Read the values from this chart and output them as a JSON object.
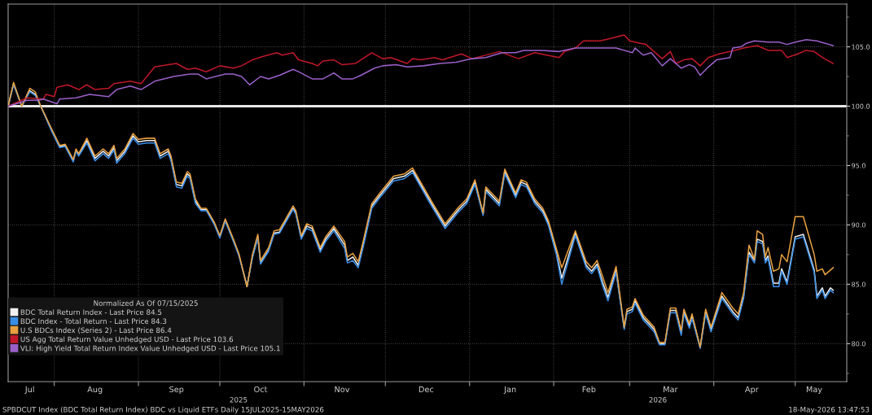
{
  "chart_data": {
    "type": "line",
    "legend": "bottom left",
    "legend_title": "Normalized As Of 07/15/2025",
    "grid": true,
    "marker": "none",
    "line_style": "solid",
    "xlim": [
      "2025-07-15",
      "2026-05-20"
    ],
    "ylim": [
      76.8,
      108.6
    ],
    "xticks": [
      {
        "value": "2025-08-01",
        "label": null
      },
      {
        "value": "2025-09-01",
        "label": null
      },
      {
        "value": "2025-10-01",
        "label": null
      },
      {
        "value": "2025-11-01",
        "label": null
      },
      {
        "value": "2025-12-01",
        "label": null
      },
      {
        "value": "2026-01-01",
        "label": null
      },
      {
        "value": "2026-02-01",
        "label": null
      },
      {
        "value": "2026-03-01",
        "label": null
      },
      {
        "value": "2026-04-01",
        "label": null
      },
      {
        "value": "2026-05-01",
        "label": null
      },
      {
        "value": "2025-07-23",
        "label": "Jul"
      },
      {
        "value": "2025-08-16",
        "label": "Aug"
      },
      {
        "value": "2025-09-15",
        "label": "Sep"
      },
      {
        "value": "2025-10-16",
        "label": "Oct"
      },
      {
        "value": "2025-11-15",
        "label": "Nov"
      },
      {
        "value": "2025-12-16",
        "label": "Dec"
      },
      {
        "value": "2026-01-16",
        "label": "Jan"
      },
      {
        "value": "2026-02-14",
        "label": "Feb"
      },
      {
        "value": "2026-03-16",
        "label": "Mar"
      },
      {
        "value": "2026-04-15",
        "label": "Apr"
      },
      {
        "value": "2026-05-08",
        "label": "May"
      }
    ],
    "yticks": [
      {
        "value": 77.5,
        "label": null
      },
      {
        "value": 80,
        "label": "80.0"
      },
      {
        "value": 82.5,
        "label": null
      },
      {
        "value": 85,
        "label": "85.0"
      },
      {
        "value": 87.5,
        "label": null
      },
      {
        "value": 90,
        "label": "90.0"
      },
      {
        "value": 92.5,
        "label": null
      },
      {
        "value": 95,
        "label": "95.0"
      },
      {
        "value": 97.5,
        "label": null
      },
      {
        "value": 100,
        "label": "100.0"
      },
      {
        "value": 102.5,
        "label": null
      },
      {
        "value": 105,
        "label": "105.0"
      },
      {
        "value": 107.5,
        "label": null
      }
    ],
    "ref_lines": [
      {
        "axis": "y",
        "value": 100,
        "label": null,
        "color": "#e8e8e8",
        "line_style": "solid"
      }
    ],
    "annotations": [
      "2025",
      "2026",
      "SPBDCUT Index (BDC Total Return Index) BDC vs Liquid ETFs Daily 15JUL2025-15MAY2026",
      "18-May-2026 13:47:53"
    ],
    "x": [
      "2025-07-15",
      "2025-07-17",
      "2025-07-20",
      "2025-07-23",
      "2025-07-25",
      "2025-07-27",
      "2025-07-31",
      "2025-08-03",
      "2025-08-05",
      "2025-08-08",
      "2025-08-09",
      "2025-08-10",
      "2025-08-13",
      "2025-08-16",
      "2025-08-19",
      "2025-08-21",
      "2025-08-23",
      "2025-08-24",
      "2025-08-27",
      "2025-08-30",
      "2025-09-01",
      "2025-09-04",
      "2025-09-07",
      "2025-09-09",
      "2025-09-12",
      "2025-09-13",
      "2025-09-15",
      "2025-09-17",
      "2025-09-19",
      "2025-09-20",
      "2025-09-22",
      "2025-09-24",
      "2025-09-26",
      "2025-09-29",
      "2025-10-01",
      "2025-10-03",
      "2025-10-06",
      "2025-10-08",
      "2025-10-11",
      "2025-10-13",
      "2025-10-15",
      "2025-10-16",
      "2025-10-19",
      "2025-10-21",
      "2025-10-23",
      "2025-10-25",
      "2025-10-28",
      "2025-10-29",
      "2025-10-31",
      "2025-11-02",
      "2025-11-04",
      "2025-11-07",
      "2025-11-09",
      "2025-11-12",
      "2025-11-16",
      "2025-11-17",
      "2025-11-19",
      "2025-11-21",
      "2025-11-23",
      "2025-11-26",
      "2025-11-29",
      "2025-12-04",
      "2025-12-08",
      "2025-12-11",
      "2025-12-14",
      "2025-12-18",
      "2025-12-23",
      "2025-12-28",
      "2025-12-31",
      "2026-01-03",
      "2026-01-06",
      "2026-01-07",
      "2026-01-12",
      "2026-01-14",
      "2026-01-18",
      "2026-01-20",
      "2026-01-22",
      "2026-01-25",
      "2026-01-28",
      "2026-01-30",
      "2026-02-02",
      "2026-02-04",
      "2026-02-09",
      "2026-02-13",
      "2026-02-15",
      "2026-02-17",
      "2026-02-19",
      "2026-02-21",
      "2026-02-24",
      "2026-02-27",
      "2026-02-28",
      "2026-03-02",
      "2026-03-03",
      "2026-03-06",
      "2026-03-10",
      "2026-03-12",
      "2026-03-14",
      "2026-03-16",
      "2026-03-18",
      "2026-03-20",
      "2026-03-21",
      "2026-03-23",
      "2026-03-24",
      "2026-03-27",
      "2026-03-29",
      "2026-03-31",
      "2026-04-04",
      "2026-04-08",
      "2026-04-10",
      "2026-04-12",
      "2026-04-14",
      "2026-04-16",
      "2026-04-17",
      "2026-04-19",
      "2026-04-20",
      "2026-04-21",
      "2026-04-23",
      "2026-04-25",
      "2026-04-26",
      "2026-04-28",
      "2026-05-01",
      "2026-05-04",
      "2026-05-08",
      "2026-05-09",
      "2026-05-11",
      "2026-05-12",
      "2026-05-14",
      "2026-05-15"
    ],
    "series": [
      {
        "name": "BDC Total Return Index - Last Price 84.5",
        "color": "#f0f0f0",
        "values": [
          100,
          101.9,
          100.0,
          101.3,
          101.0,
          100.0,
          98.0,
          96.6,
          96.7,
          95.4,
          96.3,
          95.9,
          97.1,
          95.6,
          96.2,
          95.8,
          96.5,
          95.4,
          96.2,
          97.5,
          97.0,
          97.1,
          97.1,
          95.8,
          96.2,
          95.6,
          93.4,
          93.3,
          94.3,
          94.1,
          92.0,
          91.3,
          91.3,
          90.1,
          89.0,
          90.4,
          88.7,
          87.5,
          84.8,
          87.3,
          89.0,
          86.8,
          87.9,
          89.3,
          89.4,
          90.2,
          91.4,
          91.0,
          88.9,
          89.9,
          89.7,
          87.9,
          88.8,
          89.7,
          88.3,
          87.0,
          87.3,
          86.6,
          88.5,
          91.6,
          92.5,
          93.9,
          94.1,
          94.6,
          93.4,
          91.8,
          89.9,
          91.3,
          92.0,
          93.6,
          90.9,
          93.0,
          91.8,
          94.5,
          92.5,
          93.6,
          93.4,
          92.0,
          91.2,
          90.2,
          87.7,
          85.5,
          89.3,
          86.6,
          86.1,
          86.7,
          85.2,
          83.9,
          86.2,
          81.3,
          82.7,
          82.9,
          83.6,
          82.2,
          81.2,
          80.0,
          80.0,
          82.8,
          82.8,
          80.9,
          82.7,
          81.5,
          82.3,
          79.7,
          82.7,
          81.2,
          84.0,
          82.7,
          82.2,
          84.0,
          87.7,
          87.0,
          88.8,
          88.6,
          87.0,
          87.4,
          85.1,
          85.1,
          86.3,
          85.2,
          89.0,
          89.2,
          86.2,
          84.0,
          84.7,
          84.0,
          84.7,
          84.5
        ]
      },
      {
        "name": "BDC Index - Total Return - Last Price 84.3",
        "color": "#3a8ee6",
        "values": [
          100,
          101.8,
          100.0,
          101.2,
          100.9,
          100.0,
          97.9,
          96.5,
          96.6,
          95.3,
          96.2,
          95.8,
          96.9,
          95.4,
          96.0,
          95.6,
          96.3,
          95.2,
          96.0,
          97.3,
          96.8,
          96.9,
          96.9,
          95.6,
          96.0,
          95.4,
          93.2,
          93.1,
          94.1,
          93.9,
          91.8,
          91.2,
          91.2,
          90.0,
          88.9,
          90.3,
          88.6,
          87.4,
          84.9,
          87.2,
          88.9,
          86.7,
          87.8,
          89.2,
          89.3,
          90.1,
          91.3,
          90.9,
          88.8,
          89.7,
          89.5,
          87.7,
          88.6,
          89.5,
          88.0,
          86.8,
          87.0,
          86.4,
          88.3,
          91.4,
          92.3,
          93.7,
          93.9,
          94.4,
          93.2,
          91.6,
          89.7,
          91.1,
          91.8,
          93.4,
          90.8,
          92.8,
          91.6,
          94.3,
          92.3,
          93.4,
          93.2,
          91.8,
          91.0,
          90.0,
          87.5,
          85.0,
          89.1,
          86.4,
          85.9,
          86.5,
          84.9,
          83.6,
          86.0,
          81.2,
          82.5,
          82.7,
          83.4,
          82.0,
          81.0,
          79.9,
          79.9,
          82.6,
          82.6,
          80.7,
          82.5,
          81.3,
          82.1,
          79.6,
          82.5,
          81.0,
          83.8,
          82.5,
          82.0,
          83.8,
          87.5,
          86.8,
          88.6,
          88.4,
          86.8,
          87.2,
          84.8,
          84.8,
          86.1,
          85.0,
          88.8,
          89.0,
          86.0,
          83.8,
          84.5,
          83.8,
          84.5,
          84.3
        ]
      },
      {
        "name": "U.S BDCs Index (Series 2) - Last Price 86.4",
        "color": "#e8a040",
        "values": [
          100,
          102.0,
          100.0,
          101.5,
          101.2,
          100.0,
          98.1,
          96.7,
          96.8,
          95.5,
          96.4,
          96.0,
          97.3,
          95.8,
          96.4,
          96.0,
          96.7,
          95.6,
          96.4,
          97.7,
          97.2,
          97.3,
          97.3,
          96.0,
          96.4,
          95.8,
          93.6,
          93.5,
          94.5,
          94.3,
          92.2,
          91.4,
          91.4,
          90.2,
          89.1,
          90.5,
          88.8,
          87.6,
          84.8,
          87.5,
          89.2,
          87.0,
          88.1,
          89.5,
          89.6,
          90.4,
          91.6,
          91.2,
          89.1,
          90.1,
          89.9,
          88.1,
          89.0,
          89.9,
          88.6,
          87.3,
          87.6,
          86.9,
          88.8,
          91.8,
          92.7,
          94.1,
          94.3,
          94.8,
          93.6,
          92.0,
          90.1,
          91.5,
          92.2,
          93.8,
          91.0,
          93.2,
          92.0,
          94.7,
          92.7,
          93.8,
          93.6,
          92.2,
          91.4,
          90.4,
          88.0,
          86.4,
          89.5,
          86.9,
          86.4,
          87.0,
          85.7,
          84.3,
          86.5,
          81.4,
          82.9,
          83.1,
          83.8,
          82.4,
          81.4,
          80.1,
          80.1,
          83.0,
          83.0,
          81.1,
          82.9,
          81.7,
          82.5,
          79.7,
          82.9,
          81.4,
          84.3,
          83.0,
          82.5,
          84.3,
          88.3,
          87.1,
          89.5,
          89.2,
          87.3,
          88.1,
          86.1,
          86.3,
          87.5,
          86.9,
          90.7,
          90.7,
          87.5,
          86.1,
          86.3,
          85.8,
          86.2,
          86.4
        ]
      },
      {
        "name": "US Agg Total Return Value Unhedged USD - Last Price 103.6",
        "color": "#c0182a",
        "x": [
          "2025-07-15",
          "2025-07-22",
          "2025-07-28",
          "2025-07-29",
          "2025-08-01",
          "2025-08-02",
          "2025-08-06",
          "2025-08-10",
          "2025-08-13",
          "2025-08-16",
          "2025-08-21",
          "2025-08-23",
          "2025-08-29",
          "2025-09-02",
          "2025-09-07",
          "2025-09-12",
          "2025-09-15",
          "2025-09-19",
          "2025-09-22",
          "2025-09-26",
          "2025-10-01",
          "2025-10-06",
          "2025-10-09",
          "2025-10-13",
          "2025-10-17",
          "2025-10-22",
          "2025-10-24",
          "2025-10-28",
          "2025-10-30",
          "2025-11-04",
          "2025-11-06",
          "2025-11-08",
          "2025-11-12",
          "2025-11-15",
          "2025-11-20",
          "2025-11-26",
          "2025-11-30",
          "2025-12-03",
          "2025-12-09",
          "2025-12-11",
          "2025-12-14",
          "2025-12-19",
          "2025-12-22",
          "2025-12-29",
          "2026-01-02",
          "2026-01-12",
          "2026-01-19",
          "2026-01-25",
          "2026-02-03",
          "2026-02-05",
          "2026-02-09",
          "2026-02-12",
          "2026-02-18",
          "2026-02-22",
          "2026-02-27",
          "2026-03-01",
          "2026-03-05",
          "2026-03-07",
          "2026-03-13",
          "2026-03-16",
          "2026-03-18",
          "2026-03-21",
          "2026-03-24",
          "2026-03-27",
          "2026-03-30",
          "2026-04-03",
          "2026-04-07",
          "2026-04-12",
          "2026-04-17",
          "2026-04-21",
          "2026-04-26",
          "2026-04-28",
          "2026-05-02",
          "2026-05-05",
          "2026-05-08",
          "2026-05-11",
          "2026-05-15"
        ],
        "values": [
          100,
          100.7,
          100.6,
          101.0,
          100.8,
          101.6,
          101.8,
          101.4,
          101.8,
          101.4,
          101.5,
          101.9,
          102.1,
          101.9,
          103.3,
          103.5,
          103.6,
          103.1,
          103.2,
          102.9,
          103.4,
          103.2,
          103.4,
          103.9,
          104.2,
          104.5,
          104.3,
          104.5,
          103.9,
          103.6,
          103.4,
          103.8,
          103.9,
          103.5,
          103.6,
          104.5,
          104.0,
          104.1,
          103.6,
          104.0,
          103.9,
          104.1,
          103.9,
          104.4,
          104.0,
          104.6,
          104.0,
          104.5,
          104.1,
          104.6,
          104.9,
          105.5,
          105.5,
          105.7,
          106.0,
          105.5,
          105.3,
          105.2,
          104.0,
          104.6,
          103.6,
          103.9,
          104.0,
          103.4,
          104.1,
          104.4,
          104.6,
          104.9,
          105.1,
          104.7,
          104.7,
          104.1,
          104.4,
          104.7,
          104.6,
          104.1,
          103.6
        ]
      },
      {
        "name": "VLI: High Yield Total Return Index Value Unhedged USD - Last Price 105.1",
        "color": "#9a60c8",
        "x": [
          "2025-07-15",
          "2025-07-18",
          "2025-07-22",
          "2025-07-26",
          "2025-07-28",
          "2025-08-02",
          "2025-08-03",
          "2025-08-09",
          "2025-08-14",
          "2025-08-21",
          "2025-08-24",
          "2025-08-29",
          "2025-09-02",
          "2025-09-07",
          "2025-09-14",
          "2025-09-20",
          "2025-09-23",
          "2025-09-26",
          "2025-10-03",
          "2025-10-06",
          "2025-10-09",
          "2025-10-12",
          "2025-10-16",
          "2025-10-19",
          "2025-10-23",
          "2025-10-28",
          "2025-10-30",
          "2025-11-04",
          "2025-11-08",
          "2025-11-12",
          "2025-11-15",
          "2025-11-19",
          "2025-11-22",
          "2025-11-27",
          "2025-11-30",
          "2025-12-05",
          "2025-12-09",
          "2025-12-15",
          "2025-12-21",
          "2025-12-27",
          "2026-01-02",
          "2026-01-07",
          "2026-01-13",
          "2026-01-18",
          "2026-01-21",
          "2026-01-28",
          "2026-02-03",
          "2026-02-09",
          "2026-02-13",
          "2026-02-19",
          "2026-02-24",
          "2026-03-02",
          "2026-03-03",
          "2026-03-06",
          "2026-03-09",
          "2026-03-13",
          "2026-03-16",
          "2026-03-20",
          "2026-03-23",
          "2026-03-25",
          "2026-03-27",
          "2026-03-30",
          "2026-04-02",
          "2026-04-07",
          "2026-04-08",
          "2026-04-11",
          "2026-04-13",
          "2026-04-16",
          "2026-04-21",
          "2026-04-25",
          "2026-04-28",
          "2026-05-01",
          "2026-05-05",
          "2026-05-09",
          "2026-05-12",
          "2026-05-15"
        ],
        "values": [
          100,
          100.2,
          100.5,
          100.5,
          100.6,
          100.2,
          100.6,
          100.7,
          101.0,
          100.8,
          101.4,
          101.7,
          101.4,
          102.1,
          102.5,
          102.7,
          102.7,
          102.3,
          102.7,
          102.7,
          102.5,
          101.8,
          102.5,
          102.3,
          102.6,
          103.1,
          102.9,
          102.3,
          102.3,
          102.8,
          102.3,
          102.3,
          102.6,
          103.2,
          103.4,
          103.5,
          103.3,
          103.4,
          103.6,
          103.7,
          104.0,
          104.1,
          104.5,
          104.5,
          104.7,
          104.7,
          104.6,
          104.9,
          104.9,
          104.9,
          104.9,
          104.5,
          104.9,
          104.3,
          104.5,
          103.4,
          104.0,
          103.2,
          103.5,
          103.3,
          102.6,
          103.3,
          103.9,
          104.1,
          104.9,
          105.0,
          105.3,
          105.5,
          105.4,
          105.4,
          105.2,
          105.4,
          105.6,
          105.5,
          105.3,
          105.1
        ]
      }
    ]
  }
}
